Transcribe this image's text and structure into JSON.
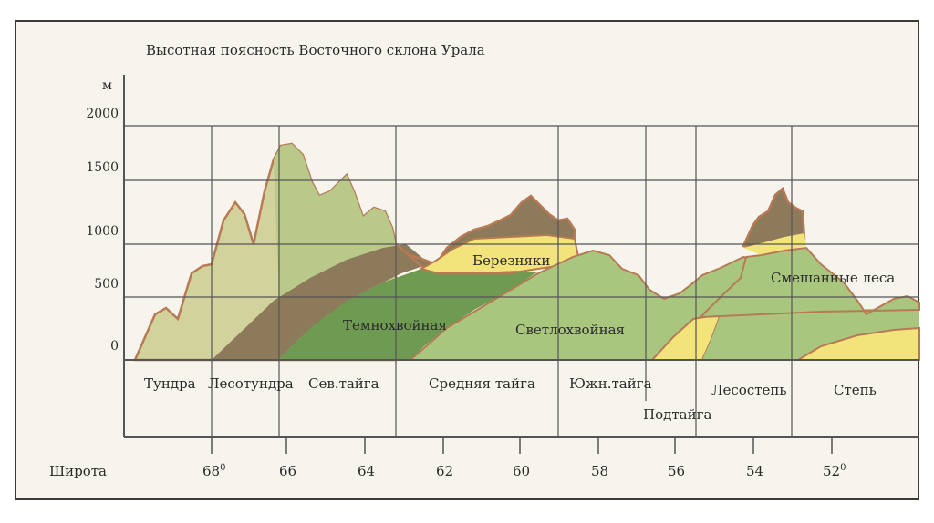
{
  "title": "Высотная поясность Восточного склона Урала",
  "y_axis": {
    "unit": "м",
    "ticks": [
      "2000",
      "1500",
      "1000",
      "500",
      "0"
    ]
  },
  "zone_labels": [
    "Березняки",
    "Темнохвойная",
    "Светлохвойная",
    "Смешанные леса"
  ],
  "zones": [
    "Тундра",
    "Лесотундра",
    "Сев.тайга",
    "Средняя тайга",
    "Южн.тайга",
    "Подтайга",
    "Лесостепь",
    "Степь"
  ],
  "latitude": {
    "label": "Широта",
    "ticks": [
      {
        "base": "68",
        "sup": "0"
      },
      {
        "base": "66",
        "sup": ""
      },
      {
        "base": "64",
        "sup": ""
      },
      {
        "base": "62",
        "sup": ""
      },
      {
        "base": "60",
        "sup": ""
      },
      {
        "base": "58",
        "sup": ""
      },
      {
        "base": "56",
        "sup": ""
      },
      {
        "base": "54",
        "sup": ""
      },
      {
        "base": "52",
        "sup": "0"
      }
    ]
  },
  "colors": {
    "tundra": "#d2d39c",
    "sev_taiga_light": "#b9c98a",
    "temnohvoinaya": "#6f9a52",
    "svetlohvoinaya": "#a9c67e",
    "bereznyaki": "#f2e47a",
    "brown": "#8c7a5a",
    "outline": "#b77a55",
    "grid": "#555555"
  }
}
